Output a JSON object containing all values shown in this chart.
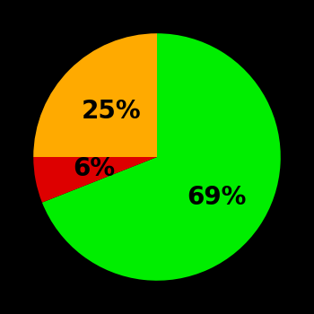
{
  "slices": [
    69,
    6,
    25
  ],
  "colors": [
    "#00ee00",
    "#dd0000",
    "#ffaa00"
  ],
  "labels": [
    "69%",
    "6%",
    "25%"
  ],
  "background_color": "#000000",
  "text_color": "#000000",
  "label_fontsize": 20,
  "label_fontweight": "bold",
  "startangle": 90,
  "figsize": [
    3.5,
    3.5
  ],
  "dpi": 100,
  "label_r": [
    0.58,
    0.52,
    0.52
  ]
}
